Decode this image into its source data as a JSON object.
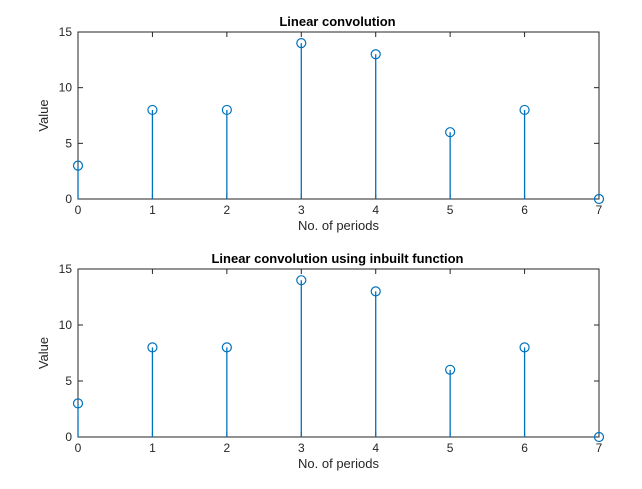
{
  "chart_data": [
    {
      "type": "stem",
      "title": "Linear convolution",
      "xlabel": "No. of periods",
      "ylabel": "Value",
      "xlim": [
        0,
        7
      ],
      "ylim": [
        0,
        15
      ],
      "xticks": [
        "0",
        "1",
        "2",
        "3",
        "4",
        "5",
        "6",
        "7"
      ],
      "yticks": [
        "0",
        "5",
        "10",
        "15"
      ],
      "grid": false,
      "series": [
        {
          "x": [
            0,
            1,
            2,
            3,
            4,
            5,
            6,
            7
          ],
          "values": [
            3,
            8,
            8,
            14,
            13,
            6,
            8,
            0
          ],
          "color": "#0072BD"
        }
      ]
    },
    {
      "type": "stem",
      "title": "Linear convolution using inbuilt function",
      "xlabel": "No. of periods",
      "ylabel": "Value",
      "xlim": [
        0,
        7
      ],
      "ylim": [
        0,
        15
      ],
      "xticks": [
        "0",
        "1",
        "2",
        "3",
        "4",
        "5",
        "6",
        "7"
      ],
      "yticks": [
        "0",
        "5",
        "10",
        "15"
      ],
      "grid": false,
      "series": [
        {
          "x": [
            0,
            1,
            2,
            3,
            4,
            5,
            6,
            7
          ],
          "values": [
            3,
            8,
            8,
            14,
            13,
            6,
            8,
            0
          ],
          "color": "#0072BD"
        }
      ]
    }
  ]
}
